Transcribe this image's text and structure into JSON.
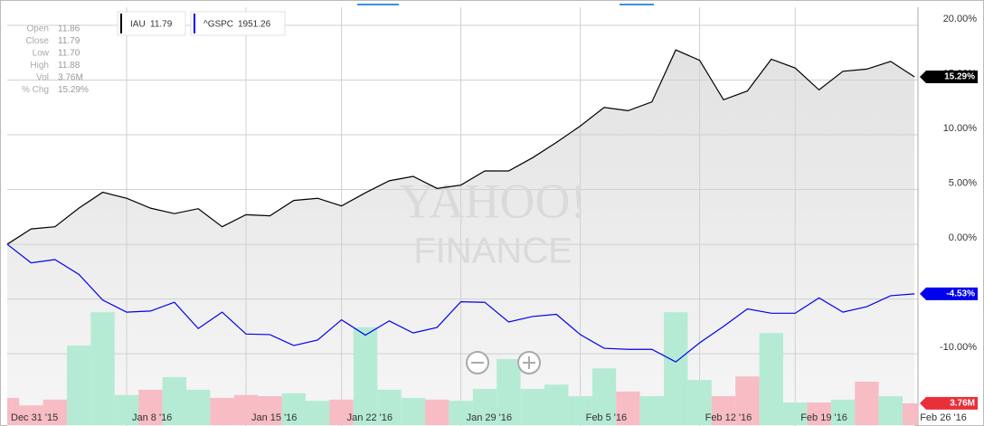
{
  "chart_data": {
    "type": "line",
    "categories": [
      "Dec 31 '15",
      null,
      null,
      null,
      null,
      "Jan 8 '16",
      null,
      null,
      null,
      null,
      "Jan 15 '16",
      null,
      null,
      null,
      "Jan 22 '16",
      null,
      null,
      null,
      null,
      "Jan 29 '16",
      null,
      null,
      null,
      null,
      "Feb 5 '16",
      null,
      null,
      null,
      null,
      "Feb 12 '16",
      null,
      null,
      null,
      "Feb 19 '16",
      null,
      null,
      null,
      null,
      "Feb 26 '16"
    ],
    "series": [
      {
        "name": "IAU",
        "legend_value": "11.79",
        "color": "#000000",
        "end_label": "15.29%",
        "values": [
          0,
          1.4,
          1.6,
          3.3,
          4.75,
          4.2,
          3.3,
          2.8,
          3.25,
          1.6,
          2.7,
          2.6,
          4.0,
          4.2,
          3.5,
          4.7,
          5.8,
          6.2,
          5.1,
          5.4,
          6.7,
          6.7,
          7.9,
          9.3,
          10.8,
          12.5,
          12.2,
          13.0,
          17.75,
          16.8,
          13.2,
          14.0,
          16.9,
          16.1,
          14.1,
          15.8,
          16.0,
          16.7,
          15.29
        ]
      },
      {
        "name": "^GSPC",
        "legend_value": "1951.26",
        "color": "#0000ee",
        "end_label": "-4.53%",
        "values": [
          0,
          -1.7,
          -1.4,
          -2.75,
          -5.1,
          -6.2,
          -6.1,
          -5.3,
          -7.7,
          -6.2,
          -8.2,
          -8.25,
          -9.25,
          -8.75,
          -6.9,
          -8.3,
          -7.0,
          -8.1,
          -7.6,
          -5.25,
          -5.3,
          -7.1,
          -6.6,
          -6.4,
          -8.25,
          -9.5,
          -9.6,
          -9.6,
          -10.75,
          -9.0,
          -7.5,
          -5.9,
          -6.3,
          -6.3,
          -4.9,
          -6.2,
          -5.7,
          -4.7,
          -4.53
        ]
      }
    ],
    "volume": {
      "end_label": "3.76M",
      "end_color": "#e8303a",
      "values": [
        4.7,
        3.4,
        4.4,
        13.75,
        19.5,
        5.2,
        6.1,
        8.3,
        6.1,
        4.7,
        5.2,
        5.0,
        5.5,
        4.2,
        4.4,
        16.9,
        6.1,
        4.7,
        4.4,
        4.2,
        6.25,
        11.4,
        6.25,
        7.0,
        5.0,
        9.8,
        5.8,
        5.0,
        19.5,
        7.8,
        5.0,
        8.4,
        15.9,
        3.9,
        3.9,
        4.4,
        7.5,
        5.0,
        3.76
      ],
      "colors": [
        "#f7bcc4",
        "#f7bcc4",
        "#f7bcc4",
        "#b5ebd4",
        "#b5ebd4",
        "#b5ebd4",
        "#f7bcc4",
        "#b5ebd4",
        "#b5ebd4",
        "#f7bcc4",
        "#f7bcc4",
        "#f7bcc4",
        "#b5ebd4",
        "#b5ebd4",
        "#f7bcc4",
        "#b5ebd4",
        "#b5ebd4",
        "#b5ebd4",
        "#f7bcc4",
        "#b5ebd4",
        "#b5ebd4",
        "#b5ebd4",
        "#b5ebd4",
        "#b5ebd4",
        "#b5ebd4",
        "#b5ebd4",
        "#f7bcc4",
        "#b5ebd4",
        "#b5ebd4",
        "#b5ebd4",
        "#f7bcc4",
        "#f7bcc4",
        "#b5ebd4",
        "#b5ebd4",
        "#f7bcc4",
        "#b5ebd4",
        "#f7bcc4",
        "#b5ebd4",
        "#f7bcc4"
      ]
    },
    "ylim": [
      -16.6,
      21.65
    ],
    "yticks": [
      {
        "value": 20,
        "label": "20.00%"
      },
      {
        "value": 15,
        "label": "15.00%"
      },
      {
        "value": 10,
        "label": "10.00%"
      },
      {
        "value": 5,
        "label": "5.00%"
      },
      {
        "value": 0,
        "label": "0.00%"
      },
      {
        "value": -5,
        "label": "-5.00%"
      },
      {
        "value": -10,
        "label": "-10.00%"
      }
    ],
    "grid": true,
    "info": [
      {
        "label": "Open",
        "value": "11.86"
      },
      {
        "label": "Close",
        "value": "11.79"
      },
      {
        "label": "Low",
        "value": "11.70"
      },
      {
        "label": "High",
        "value": "11.88"
      },
      {
        "label": "Vol",
        "value": "3.76M"
      },
      {
        "label": "% Chg",
        "value": "15.29%"
      }
    ],
    "watermark": [
      "YAHOO!",
      "FINANCE"
    ]
  }
}
